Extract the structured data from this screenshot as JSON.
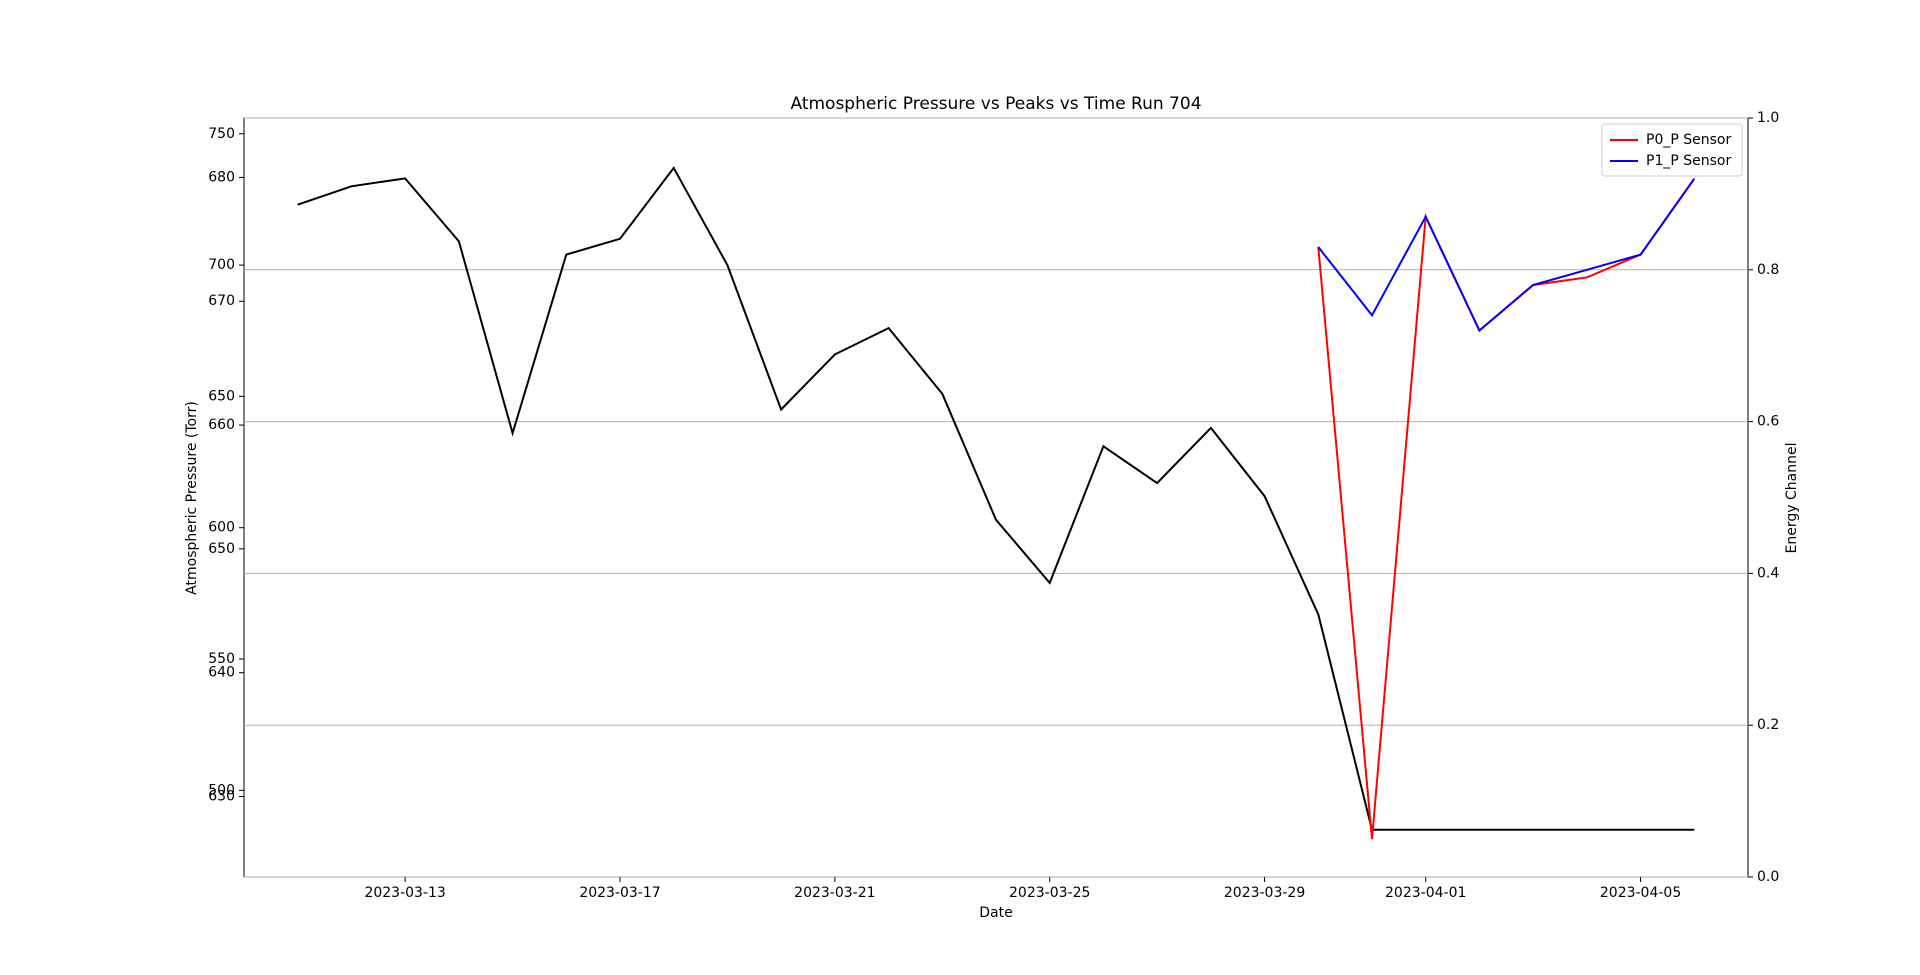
{
  "chart_data": {
    "type": "line",
    "title": "Atmospheric Pressure vs Peaks vs Time Run 704",
    "x_label": "Date",
    "y_label": "Atmospheric Pressure (Torr)",
    "y2_label": "Energy Channel",
    "x": [
      "2023-03-11",
      "2023-03-12",
      "2023-03-13",
      "2023-03-14",
      "2023-03-15",
      "2023-03-16",
      "2023-03-17",
      "2023-03-18",
      "2023-03-19",
      "2023-03-20",
      "2023-03-21",
      "2023-03-22",
      "2023-03-23",
      "2023-03-24",
      "2023-03-25",
      "2023-03-26",
      "2023-03-27",
      "2023-03-28",
      "2023-03-29",
      "2023-03-30",
      "2023-03-31",
      "2023-04-01",
      "2023-04-02",
      "2023-04-03",
      "2023-04-04",
      "2023-04-05",
      "2023-04-06"
    ],
    "xlim": [
      "2023-03-10",
      "2023-04-07"
    ],
    "xticks": [
      "2023-03-13",
      "2023-03-17",
      "2023-03-21",
      "2023-03-25",
      "2023-03-29",
      "2023-04-01",
      "2023-04-05"
    ],
    "ylim": [
      467,
      756
    ],
    "yticks": [
      500,
      550,
      600,
      650,
      700,
      750
    ],
    "y3lim": [
      623.5,
      684.8
    ],
    "y3ticks": [
      630,
      640,
      650,
      660,
      670,
      680
    ],
    "y2lim": [
      0,
      1
    ],
    "y2ticks": [
      {
        "value": 0,
        "label": "0.0"
      },
      {
        "value": 0.2,
        "label": "0.2"
      },
      {
        "value": 0.4,
        "label": "0.4"
      },
      {
        "value": 0.6,
        "label": "0.6"
      },
      {
        "value": 0.8,
        "label": "0.8"
      },
      {
        "value": 1,
        "label": "1.0"
      }
    ],
    "grid": "y2",
    "legend": "upper right",
    "series": [
      {
        "color": "#000000",
        "values": [
          723,
          730,
          733,
          709,
          636,
          704,
          710,
          737,
          700,
          645,
          666,
          676,
          651,
          603,
          579,
          631,
          617,
          638,
          612,
          567,
          485,
          485,
          485,
          485,
          485,
          485,
          485
        ]
      },
      {
        "name": "P0_P Sensor",
        "color": "#ff0000",
        "axis": "y2",
        "values": [
          null,
          null,
          null,
          null,
          null,
          null,
          null,
          null,
          null,
          null,
          null,
          null,
          null,
          null,
          null,
          null,
          null,
          null,
          null,
          0.83,
          0.05,
          0.87,
          0.72,
          0.78,
          0.79,
          0.82,
          0.92
        ]
      },
      {
        "name": "P1_P Sensor",
        "color": "#0000ff",
        "axis": "y2",
        "values": [
          null,
          null,
          null,
          null,
          null,
          null,
          null,
          null,
          null,
          null,
          null,
          null,
          null,
          null,
          null,
          null,
          null,
          null,
          null,
          0.83,
          0.74,
          0.87,
          0.72,
          0.78,
          0.8,
          0.82,
          0.92
        ]
      }
    ]
  }
}
